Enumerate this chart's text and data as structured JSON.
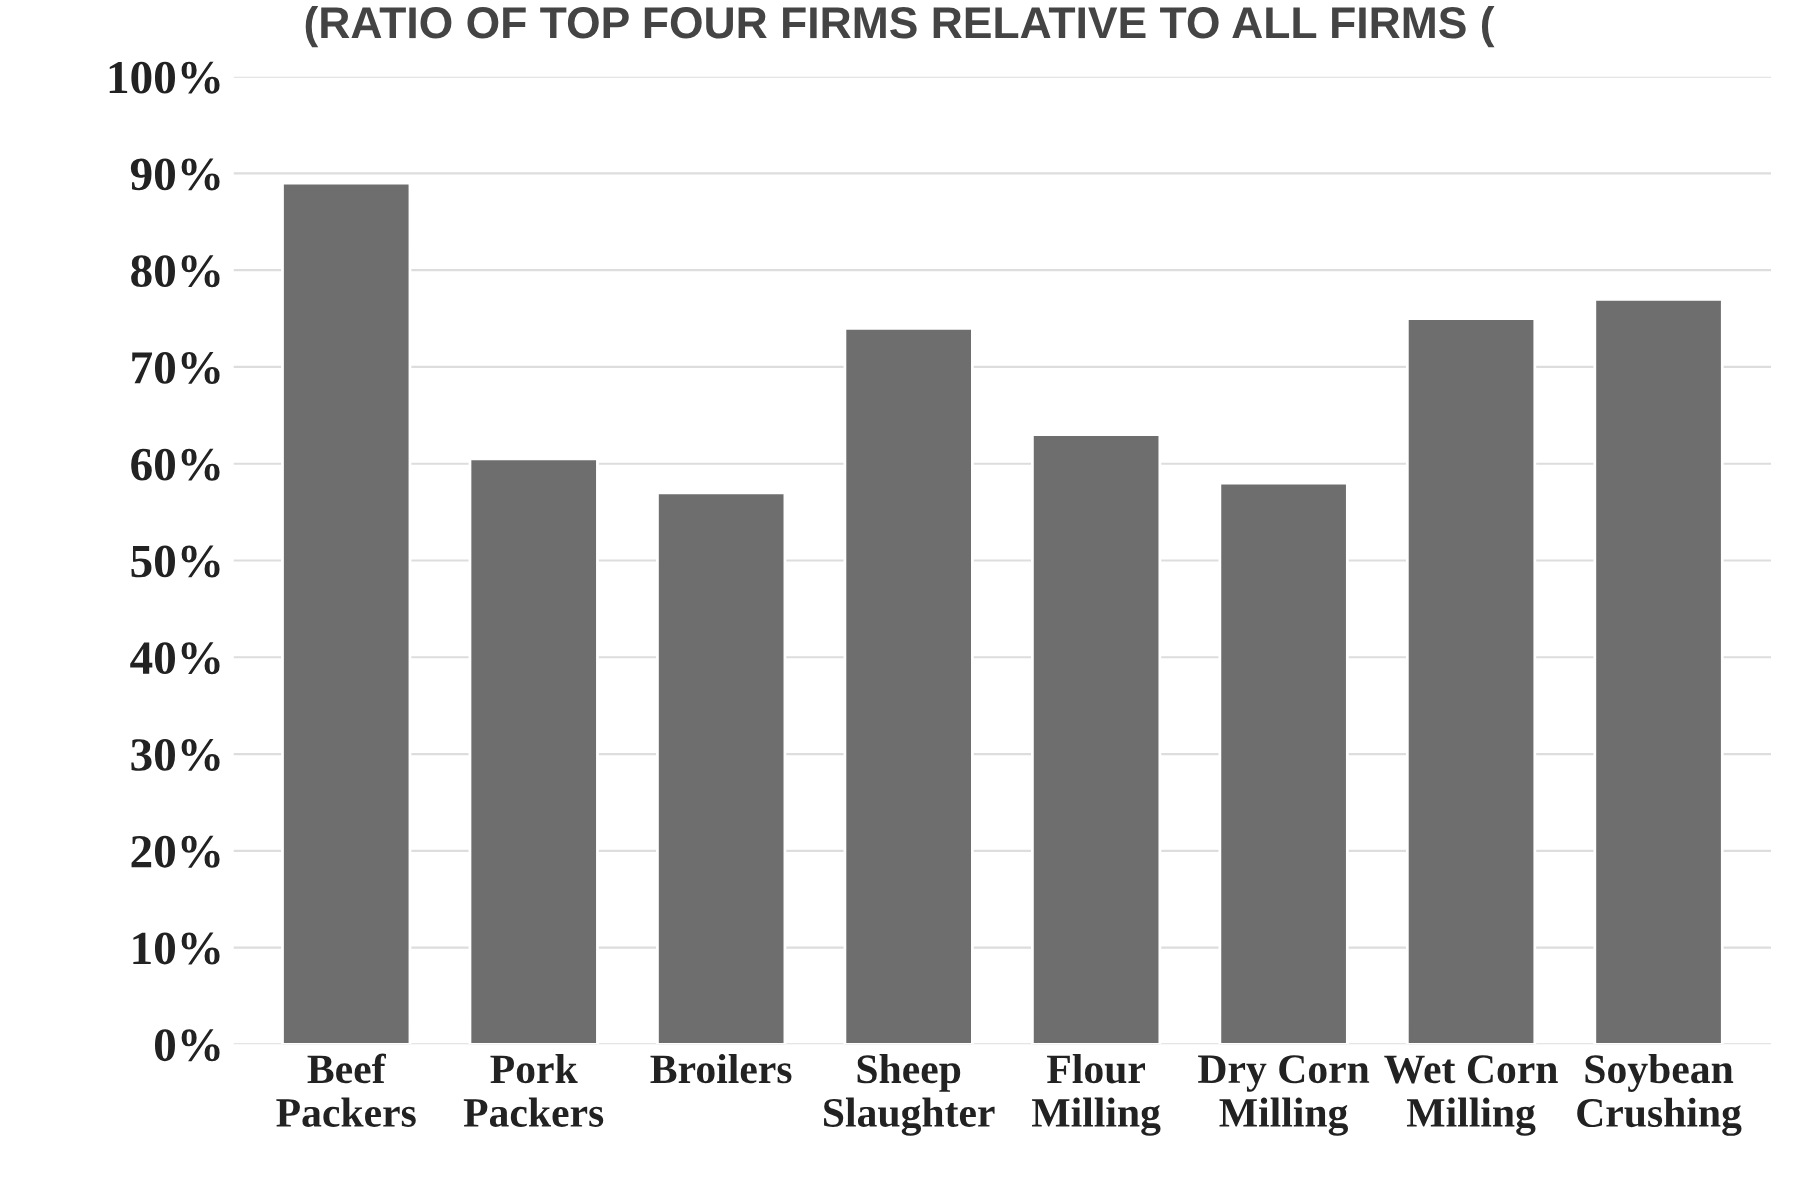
{
  "chart_data": {
    "type": "bar",
    "title": "(RATIO OF TOP FOUR FIRMS RELATIVE TO ALL FIRMS (",
    "categories": [
      "Beef\nPackers",
      "Pork\nPackers",
      "Broilers",
      "Sheep\nSlaughter",
      "Flour\nMilling",
      "Dry Corn\nMilling",
      "Wet Corn\nMilling",
      "Soybean\nCrushing"
    ],
    "values": [
      89,
      60.5,
      57,
      74,
      63,
      58,
      75,
      77
    ],
    "color": "#6e6e6e",
    "ylim": [
      0,
      100
    ],
    "yticks": [
      {
        "value": 0,
        "label": "0%"
      },
      {
        "value": 10,
        "label": "10%"
      },
      {
        "value": 20,
        "label": "20%"
      },
      {
        "value": 30,
        "label": "30%"
      },
      {
        "value": 40,
        "label": "40%"
      },
      {
        "value": 50,
        "label": "50%"
      },
      {
        "value": 60,
        "label": "60%"
      },
      {
        "value": 70,
        "label": "70%"
      },
      {
        "value": 80,
        "label": "80%"
      },
      {
        "value": 90,
        "label": "90%"
      },
      {
        "value": 100,
        "label": "100%"
      }
    ],
    "grid": "y"
  }
}
